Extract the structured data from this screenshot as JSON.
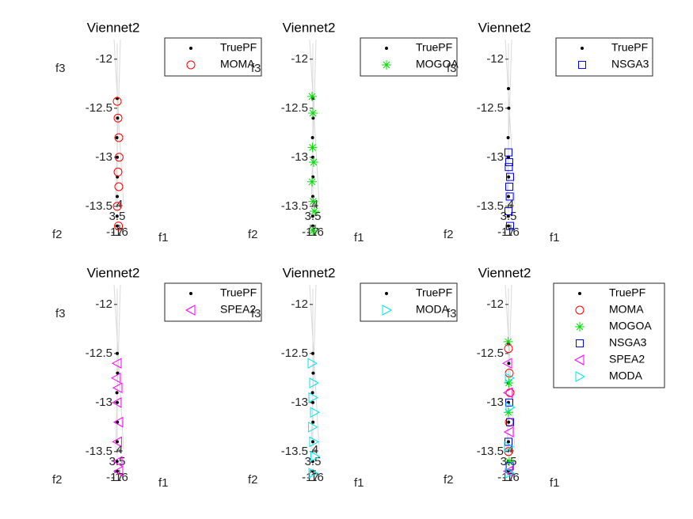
{
  "chart_data": [
    {
      "type": "scatter",
      "title": "Viennet2",
      "xlabel": "f1",
      "ylabel": "f2",
      "zlabel": "f3",
      "xlim": [
        3,
        4.5
      ],
      "zlim": [
        -13.8,
        -11.8
      ],
      "zticks": [
        -12,
        -12.5,
        -13,
        -13.5
      ],
      "xticks": [
        3.5,
        4
      ],
      "yticks": [
        -17,
        -16
      ],
      "series": [
        {
          "name": "TruePF",
          "color": "#000000",
          "marker": "point",
          "x": [
            3.5,
            3.52,
            3.48,
            3.5,
            3.51,
            3.5,
            3.49,
            3.5
          ],
          "values": [
            -12.4,
            -12.6,
            -12.8,
            -13.0,
            -13.2,
            -13.4,
            -13.6,
            -13.7
          ]
        },
        {
          "name": "MOMA",
          "color": "#ff0000",
          "marker": "o",
          "x": [
            3.5,
            3.55,
            3.6,
            3.62,
            3.55,
            3.6,
            3.5,
            3.58
          ],
          "values": [
            -12.43,
            -12.6,
            -12.8,
            -13.0,
            -13.15,
            -13.3,
            -13.5,
            -13.7
          ]
        }
      ]
    },
    {
      "type": "scatter",
      "title": "Viennet2",
      "xlabel": "f1",
      "ylabel": "f2",
      "zlabel": "f3",
      "xlim": [
        3,
        4.5
      ],
      "zlim": [
        -13.8,
        -11.8
      ],
      "zticks": [
        -12,
        -12.5,
        -13,
        -13.5
      ],
      "xticks": [
        3.5,
        4
      ],
      "yticks": [
        -17,
        -16
      ],
      "series": [
        {
          "name": "TruePF",
          "color": "#000000",
          "marker": "point",
          "x": [
            3.5,
            3.52,
            3.48,
            3.5,
            3.51,
            3.5,
            3.49,
            3.5
          ],
          "values": [
            -12.4,
            -12.6,
            -12.8,
            -13.0,
            -13.2,
            -13.4,
            -13.6,
            -13.7
          ]
        },
        {
          "name": "MOGOA",
          "color": "#00dd00",
          "marker": "*",
          "x": [
            3.45,
            3.5,
            3.48,
            3.55,
            3.45,
            3.52,
            3.6,
            3.5
          ],
          "values": [
            -12.38,
            -12.55,
            -12.9,
            -13.05,
            -13.25,
            -13.45,
            -13.55,
            -13.75
          ]
        }
      ]
    },
    {
      "type": "scatter",
      "title": "Viennet2",
      "xlabel": "f1",
      "ylabel": "f2",
      "zlabel": "f3",
      "xlim": [
        3,
        4.5
      ],
      "zlim": [
        -13.8,
        -11.8
      ],
      "zticks": [
        -12,
        -12.5,
        -13,
        -13.5
      ],
      "xticks": [
        3.5,
        4
      ],
      "yticks": [
        -17,
        -16
      ],
      "series": [
        {
          "name": "TruePF",
          "color": "#000000",
          "marker": "point",
          "x": [
            3.5,
            3.52,
            3.48,
            3.5,
            3.51,
            3.5,
            3.49,
            3.5
          ],
          "values": [
            -12.3,
            -12.5,
            -12.8,
            -13.0,
            -13.2,
            -13.4,
            -13.6,
            -13.7
          ]
        },
        {
          "name": "NSGA3",
          "color": "#0000ff",
          "marker": "s",
          "x": [
            3.5,
            3.55,
            3.52,
            3.6,
            3.55,
            3.58,
            3.5,
            3.6
          ],
          "values": [
            -12.95,
            -13.05,
            -13.1,
            -13.2,
            -13.3,
            -13.4,
            -13.55,
            -13.7
          ]
        }
      ]
    },
    {
      "type": "scatter",
      "title": "Viennet2",
      "xlabel": "f1",
      "ylabel": "f2",
      "zlabel": "f3",
      "xlim": [
        3,
        4.5
      ],
      "zlim": [
        -13.8,
        -11.8
      ],
      "zticks": [
        -12,
        -12.5,
        -13,
        -13.5
      ],
      "xticks": [
        3.5,
        4
      ],
      "yticks": [
        -17,
        -16
      ],
      "series": [
        {
          "name": "TruePF",
          "color": "#000000",
          "marker": "point",
          "x": [
            3.5,
            3.52,
            3.48,
            3.5,
            3.51,
            3.5,
            3.49,
            3.5
          ],
          "values": [
            -12.5,
            -12.7,
            -12.9,
            -13.0,
            -13.2,
            -13.4,
            -13.6,
            -13.7
          ]
        },
        {
          "name": "SPEA2",
          "color": "#ff00ff",
          "marker": "<",
          "x": [
            3.5,
            3.45,
            3.55,
            3.5,
            3.6,
            3.52,
            3.55,
            3.6
          ],
          "values": [
            -12.6,
            -12.75,
            -12.85,
            -13.0,
            -13.2,
            -13.4,
            -13.6,
            -13.7
          ]
        }
      ]
    },
    {
      "type": "scatter",
      "title": "Viennet2",
      "xlabel": "f1",
      "ylabel": "f2",
      "zlabel": "f3",
      "xlim": [
        3,
        4.5
      ],
      "zlim": [
        -13.8,
        -11.8
      ],
      "zticks": [
        -12,
        -12.5,
        -13,
        -13.5
      ],
      "xticks": [
        3.5,
        4
      ],
      "yticks": [
        -17,
        -16
      ],
      "series": [
        {
          "name": "TruePF",
          "color": "#000000",
          "marker": "point",
          "x": [
            3.5,
            3.52,
            3.48,
            3.5,
            3.51,
            3.5,
            3.49,
            3.5
          ],
          "values": [
            -12.5,
            -12.7,
            -12.9,
            -13.0,
            -13.2,
            -13.4,
            -13.6,
            -13.7
          ]
        },
        {
          "name": "MODA",
          "color": "#00e5ee",
          "marker": ">",
          "x": [
            3.45,
            3.55,
            3.5,
            3.6,
            3.48,
            3.55,
            3.62,
            3.5
          ],
          "values": [
            -12.6,
            -12.8,
            -12.95,
            -13.1,
            -13.25,
            -13.4,
            -13.55,
            -13.72
          ]
        }
      ]
    },
    {
      "type": "scatter",
      "title": "Viennet2",
      "xlabel": "f1",
      "ylabel": "f2",
      "zlabel": "f3",
      "xlim": [
        3,
        4.5
      ],
      "zlim": [
        -13.8,
        -11.8
      ],
      "zticks": [
        -12,
        -12.5,
        -13,
        -13.5
      ],
      "xticks": [
        3.5,
        4
      ],
      "yticks": [
        -17,
        -16
      ],
      "series": [
        {
          "name": "TruePF",
          "color": "#000000",
          "marker": "point",
          "x": [
            3.5,
            3.52,
            3.48,
            3.5,
            3.51,
            3.5,
            3.49,
            3.5
          ],
          "values": [
            -12.4,
            -12.6,
            -12.8,
            -13.0,
            -13.2,
            -13.4,
            -13.6,
            -13.7
          ]
        },
        {
          "name": "MOMA",
          "color": "#ff0000",
          "marker": "o",
          "x": [
            3.5,
            3.55,
            3.6,
            3.55,
            3.5
          ],
          "values": [
            -12.45,
            -12.7,
            -12.9,
            -13.2,
            -13.5
          ]
        },
        {
          "name": "MOGOA",
          "color": "#00dd00",
          "marker": "*",
          "x": [
            3.48,
            3.52,
            3.5,
            3.55
          ],
          "values": [
            -12.38,
            -12.8,
            -13.1,
            -13.6
          ]
        },
        {
          "name": "NSGA3",
          "color": "#0000ff",
          "marker": "s",
          "x": [
            3.55,
            3.6,
            3.5,
            3.58
          ],
          "values": [
            -13.0,
            -13.2,
            -13.4,
            -13.65
          ]
        },
        {
          "name": "SPEA2",
          "color": "#ff00ff",
          "marker": "<",
          "x": [
            3.45,
            3.5,
            3.55,
            3.5
          ],
          "values": [
            -12.6,
            -12.9,
            -13.3,
            -13.7
          ]
        },
        {
          "name": "MODA",
          "color": "#00e5ee",
          "marker": ">",
          "x": [
            3.55,
            3.6,
            3.5,
            3.55
          ],
          "values": [
            -12.75,
            -13.05,
            -13.45,
            -13.72
          ]
        }
      ]
    }
  ]
}
